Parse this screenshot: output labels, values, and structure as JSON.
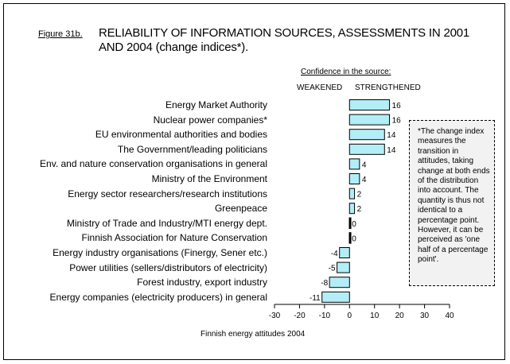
{
  "figure_label": "Figure 31b.",
  "title": "RELIABILITY OF INFORMATION SOURCES, ASSESSMENTS IN 2001 AND 2004 (change indices*).",
  "header": {
    "confidence": "Confidence in the source:",
    "weakened": "WEAKENED",
    "strengthened": "STRENGTHENED"
  },
  "note": "*The change index measures the transition in attitudes, taking change at both ends of the distribution into account. The quantity is thus not identical to a percentage point. However, it can be perceived as 'one half of a percentage point'.",
  "source": "Finnish energy attitudes 2004",
  "colors": {
    "bar_fill": "#b3eef7",
    "bar_stroke": "#000000"
  },
  "chart_data": {
    "type": "bar",
    "orientation": "horizontal",
    "title": "RELIABILITY OF INFORMATION SOURCES, ASSESSMENTS IN 2001 AND 2004 (change indices*).",
    "xlabel": "",
    "ylabel": "",
    "xlim": [
      -30,
      40
    ],
    "xticks": [
      -30,
      -20,
      -10,
      0,
      10,
      20,
      30,
      40
    ],
    "grid": false,
    "categories": [
      "Energy Market Authority",
      "Nuclear power companies*",
      "EU environmental authorities and bodies",
      "The Government/leading politicians",
      "Env. and nature conservation organisations in general",
      "Ministry of the Environment",
      "Energy sector researchers/research institutions",
      "Greenpeace",
      "Ministry of Trade and Industry/MTI energy dept.",
      "Finnish Association for Nature Conservation",
      "Energy industry organisations (Finergy, Sener etc.)",
      "Power utilities (sellers/distributors of electricity)",
      "Forest industry, export industry",
      "Energy companies (electricity producers) in general"
    ],
    "values": [
      16,
      16,
      14,
      14,
      4,
      4,
      2,
      2,
      0,
      0,
      -4,
      -5,
      -8,
      -11
    ]
  }
}
